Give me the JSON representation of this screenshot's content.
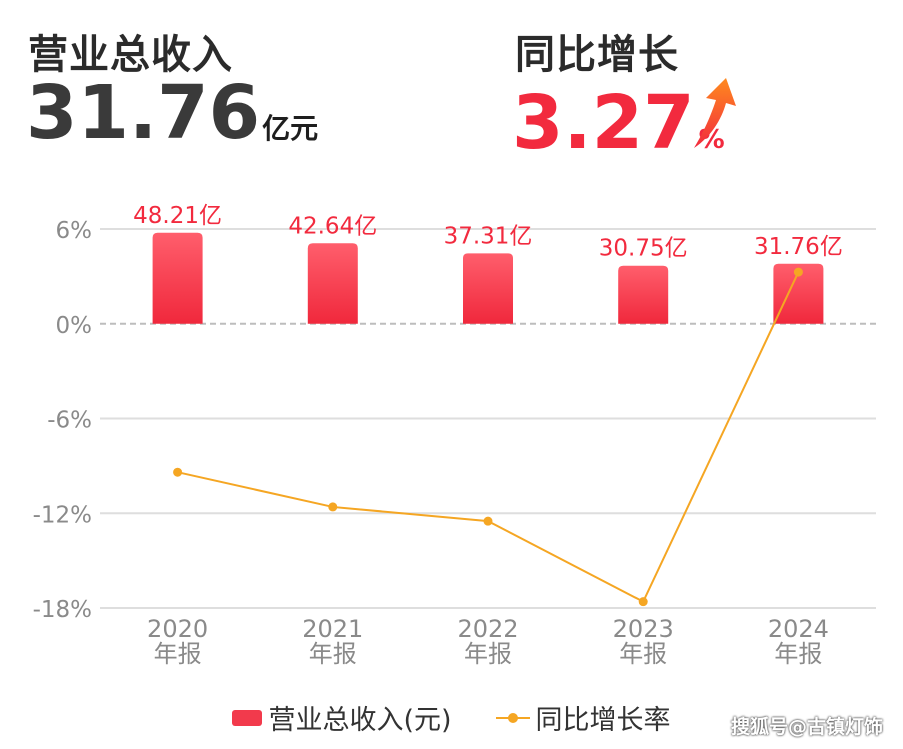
{
  "summary": {
    "revenue_label": "营业总收入",
    "revenue_value": "31.76",
    "revenue_unit": "亿元",
    "growth_label": "同比增长",
    "growth_value": "3.27",
    "growth_unit": "%",
    "growth_icon": "up-arrow-icon"
  },
  "chart_data": {
    "type": "bar",
    "categories": [
      "2020",
      "2021",
      "2022",
      "2023",
      "2024"
    ],
    "category_sublabel": "年报",
    "bar_label_suffix": "亿",
    "series": [
      {
        "name": "营业总收入(元)",
        "type": "bar",
        "values": [
          48.21,
          42.64,
          37.31,
          30.75,
          31.76
        ],
        "color": "#f23a4c"
      },
      {
        "name": "同比增长率",
        "type": "line",
        "values": [
          -9.4,
          -11.6,
          -12.5,
          -17.6,
          3.27
        ],
        "color": "#f5a623"
      }
    ],
    "y_ticks": [
      "6%",
      "0%",
      "-6%",
      "-12%",
      "-18%"
    ],
    "ylim": [
      -18,
      6
    ],
    "grid": true,
    "legend": "bottom"
  },
  "watermark": "搜狐号@古镇灯饰"
}
